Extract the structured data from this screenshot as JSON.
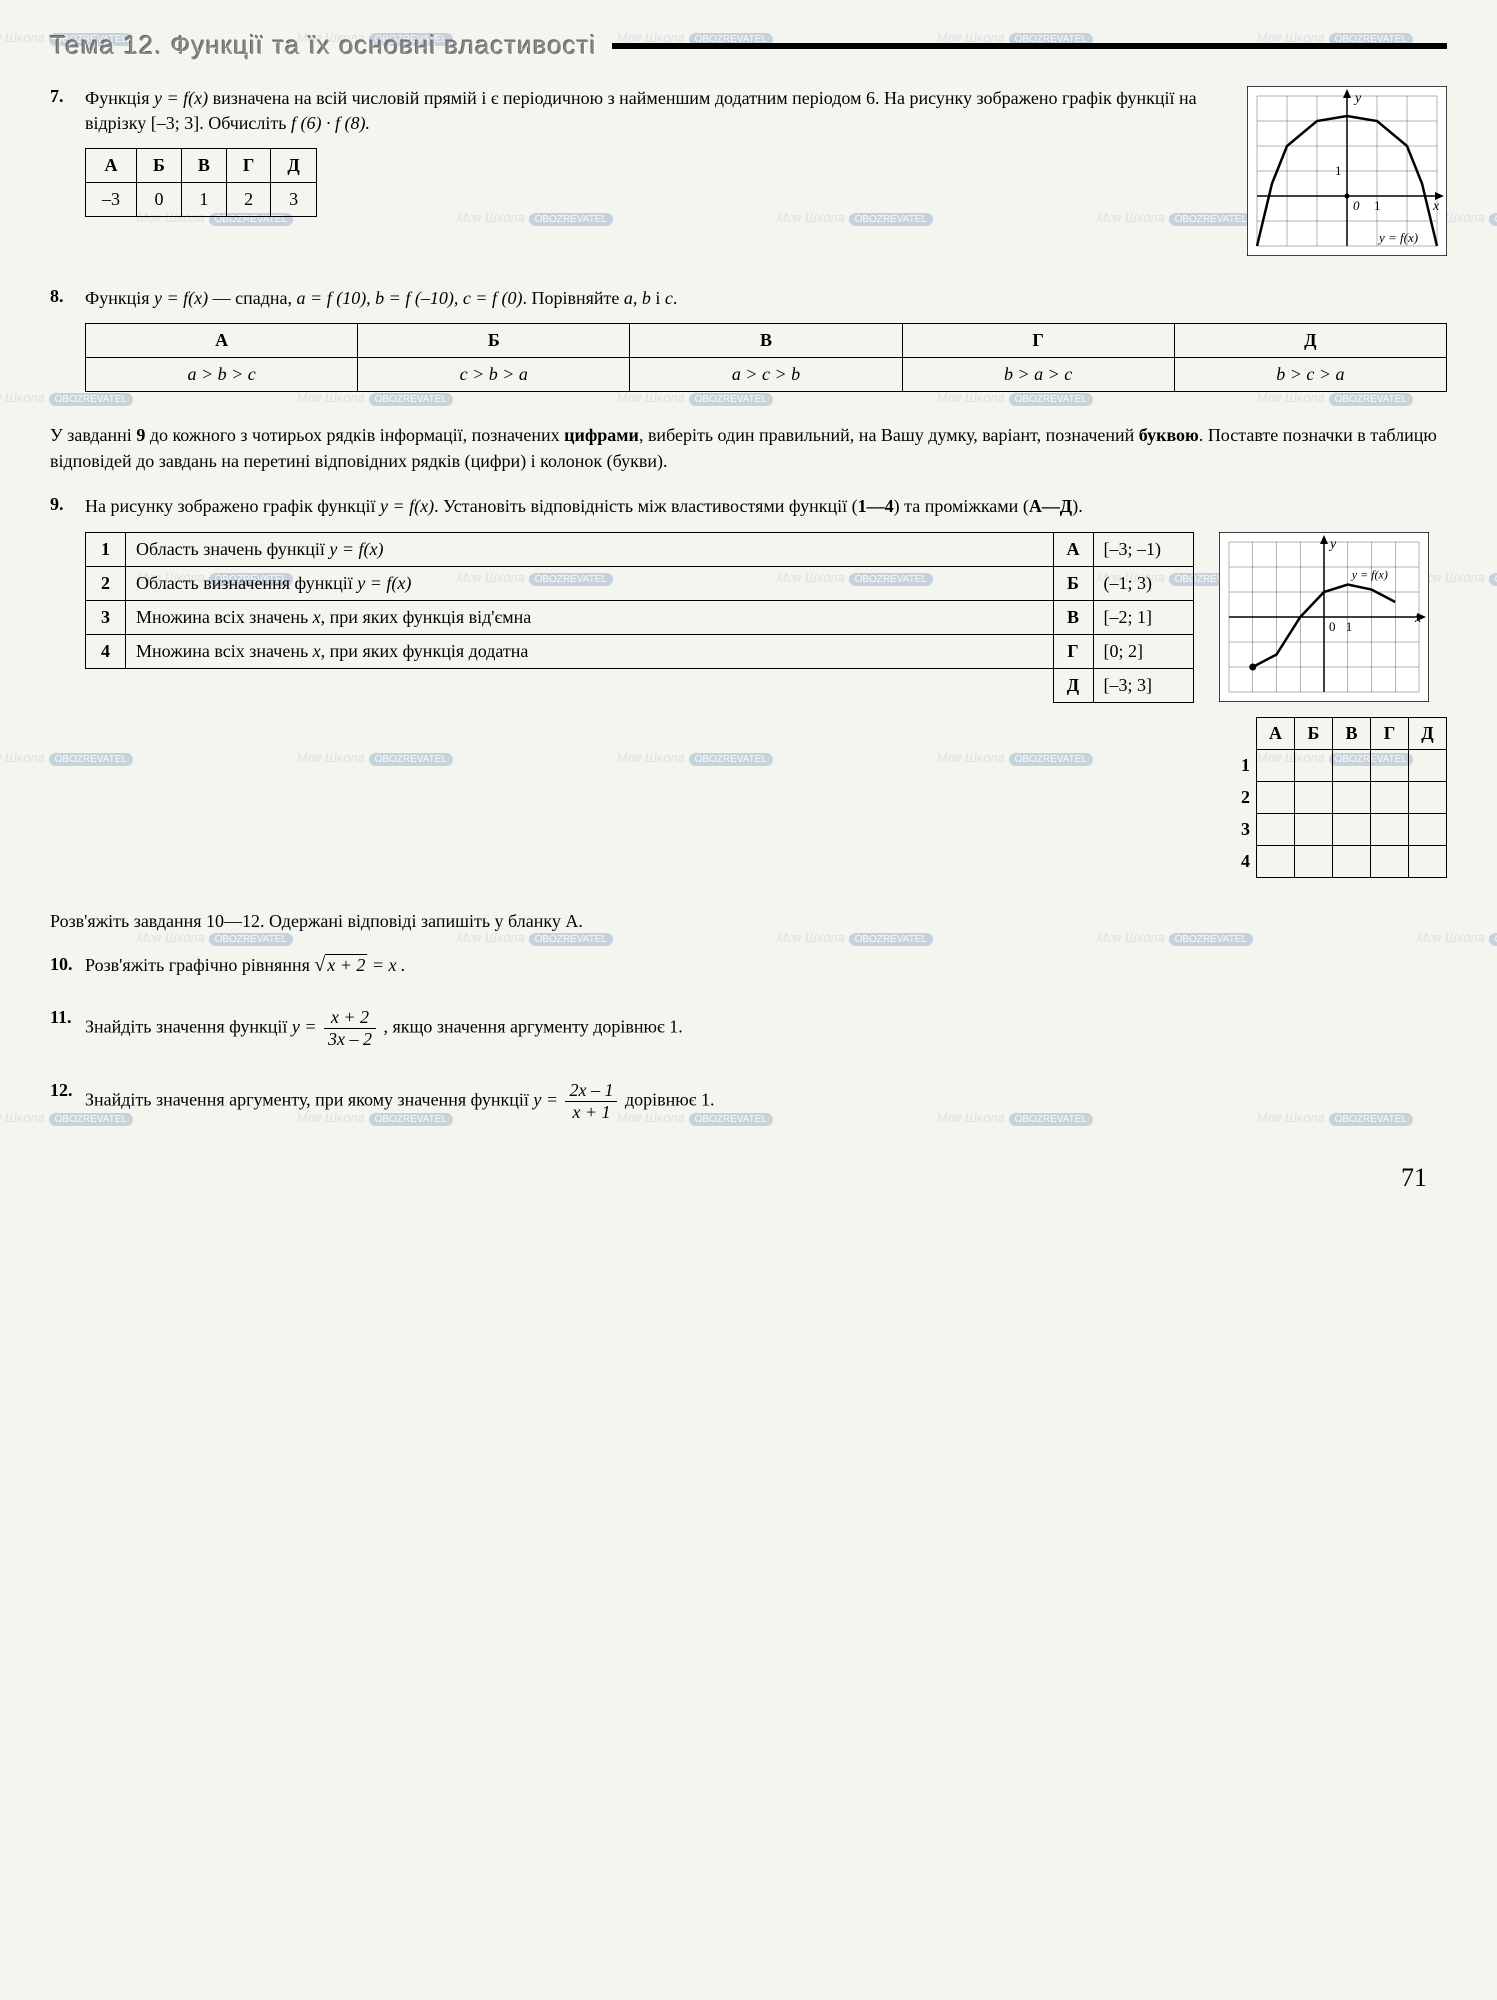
{
  "watermark": {
    "text": "Моя Школа",
    "badge": "OBOZREVATEL"
  },
  "page_number": "71",
  "topic": {
    "label": "Тема 12.",
    "title": "Функції та їх основні властивості"
  },
  "p7": {
    "num": "7.",
    "text_parts": [
      "Функція ",
      "y = f(x)",
      " визначена на всій числовій прямій і є періодичною з найменшим додатним періодом 6. На рисунку зображено графік функції на відрізку [–3; 3]. Обчисліть ",
      "f (6) · f (8)."
    ],
    "headers": [
      "А",
      "Б",
      "В",
      "Г",
      "Д"
    ],
    "values": [
      "–3",
      "0",
      "1",
      "2",
      "3"
    ],
    "graph": {
      "type": "parabola",
      "grid_color": "#666",
      "bg": "#ffffff",
      "axis_color": "#000",
      "curve_color": "#000",
      "xlim": [
        -3,
        3
      ],
      "ylim": [
        -2,
        4
      ],
      "x_label": "x",
      "y_label": "y",
      "fn_label": "y = f(x)",
      "tick_label_1": "1",
      "origin_label": "0",
      "points": [
        [
          -3,
          -2
        ],
        [
          -2.5,
          0.5
        ],
        [
          -2,
          2
        ],
        [
          -1,
          3
        ],
        [
          0,
          3.2
        ],
        [
          1,
          3
        ],
        [
          2,
          2
        ],
        [
          2.5,
          0.5
        ],
        [
          3,
          -2
        ]
      ]
    }
  },
  "p8": {
    "num": "8.",
    "text_parts": [
      "Функція ",
      "y = f(x)",
      " — спадна, ",
      "a = f (10), b = f (–10), c = f (0)",
      ". Порівняйте ",
      "a, b",
      " і ",
      "c",
      "."
    ],
    "headers": [
      "А",
      "Б",
      "В",
      "Г",
      "Д"
    ],
    "values": [
      "a > b > c",
      "c > b > a",
      "a > c > b",
      "b > a > c",
      "b > c > a"
    ]
  },
  "instruction9": {
    "parts": [
      "У завданні ",
      "9",
      " до кожного з чотирьох рядків інформації, позначених ",
      "цифрами",
      ", виберіть один правильний, на Вашу думку, варіант, позначений ",
      "буквою",
      ". Поставте позначки в таблицю відповідей до завдань на перетині відповідних рядків (цифри) і колонок (букви)."
    ]
  },
  "p9": {
    "num": "9.",
    "text_parts": [
      "На рисунку зображено графік функції ",
      "y = f(x)",
      ". Установіть відповідність між властивостями функції (",
      "1—4",
      ") та проміжками (",
      "А—Д",
      ")."
    ],
    "rows": [
      {
        "n": "1",
        "desc": "Область значень функції y = f(x)",
        "letter": "А",
        "range": "[–3; –1)"
      },
      {
        "n": "2",
        "desc": "Область визначення функції y = f(x)",
        "letter": "Б",
        "range": "(–1; 3)"
      },
      {
        "n": "3",
        "desc": "Множина всіх значень x, при яких функція від'ємна",
        "letter": "В",
        "range": "[–2; 1]"
      },
      {
        "n": "4",
        "desc": "Множина всіх значень x, при яких функція додатна",
        "letter": "Г",
        "range": "[0; 2]"
      }
    ],
    "last_row": {
      "letter": "Д",
      "range": "[–3; 3]"
    },
    "graph": {
      "type": "s-curve",
      "grid_color": "#666",
      "bg": "#ffffff",
      "axis_color": "#000",
      "curve_color": "#000",
      "xlim": [
        -4,
        4
      ],
      "ylim": [
        -3,
        3
      ],
      "x_label": "x",
      "y_label": "y",
      "fn_label": "y = f(x)",
      "origin_label": "0",
      "tick_label_1": "1",
      "points": [
        [
          -3,
          -2
        ],
        [
          -2,
          -1.5
        ],
        [
          -1,
          0
        ],
        [
          0,
          1
        ],
        [
          1,
          1.3
        ],
        [
          2,
          1.1
        ],
        [
          3,
          0.6
        ]
      ],
      "start_dot": [
        -3,
        -2
      ]
    },
    "answer_grid": {
      "cols": [
        "А",
        "Б",
        "В",
        "Г",
        "Д"
      ],
      "rows": [
        "1",
        "2",
        "3",
        "4"
      ]
    }
  },
  "instruction10": "Розв'яжіть завдання 10—12. Одержані відповіді запишіть у бланку А.",
  "p10": {
    "num": "10.",
    "text": "Розв'яжіть графічно рівняння ",
    "eq_left": "x + 2",
    "eq_right": " = x ."
  },
  "p11": {
    "num": "11.",
    "text1": "Знайдіть значення функції ",
    "frac_num": "x + 2",
    "frac_den": "3x – 2",
    "text2": " , якщо значення аргументу дорівнює 1."
  },
  "p12": {
    "num": "12.",
    "text1": "Знайдіть значення аргументу, при якому значення функції ",
    "frac_num": "2x – 1",
    "frac_den": "x + 1",
    "text2": "  дорівнює 1."
  }
}
